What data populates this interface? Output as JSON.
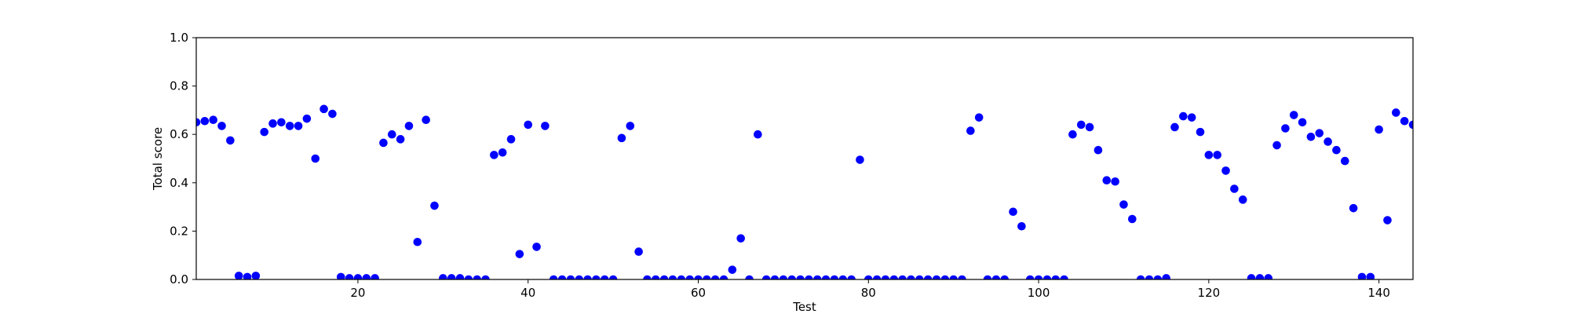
{
  "chart_data": {
    "type": "scatter",
    "title": "",
    "xlabel": "Test",
    "ylabel": "Total score",
    "xlim": [
      1,
      144
    ],
    "ylim": [
      0.0,
      1.0
    ],
    "grid": false,
    "legend": "none",
    "marker_color": "#0000ff",
    "xticks": [
      20,
      40,
      60,
      80,
      100,
      120,
      140
    ],
    "xtick_labels": [
      "20",
      "40",
      "60",
      "80",
      "100",
      "120",
      "140"
    ],
    "yticks": [
      0.0,
      0.2,
      0.4,
      0.6,
      0.8,
      1.0
    ],
    "ytick_labels": [
      "0.0",
      "0.2",
      "0.4",
      "0.6",
      "0.8",
      "1.0"
    ],
    "series": [
      {
        "points": [
          [
            1,
            0.65
          ],
          [
            2,
            0.655
          ],
          [
            3,
            0.66
          ],
          [
            4,
            0.635
          ],
          [
            5,
            0.575
          ],
          [
            6,
            0.015
          ],
          [
            7,
            0.01
          ],
          [
            8,
            0.015
          ],
          [
            9,
            0.61
          ],
          [
            10,
            0.645
          ],
          [
            11,
            0.65
          ],
          [
            12,
            0.635
          ],
          [
            13,
            0.635
          ],
          [
            14,
            0.665
          ],
          [
            15,
            0.5
          ],
          [
            16,
            0.705
          ],
          [
            17,
            0.685
          ],
          [
            18,
            0.01
          ],
          [
            19,
            0.005
          ],
          [
            20,
            0.005
          ],
          [
            21,
            0.005
          ],
          [
            22,
            0.005
          ],
          [
            23,
            0.565
          ],
          [
            24,
            0.6
          ],
          [
            25,
            0.58
          ],
          [
            26,
            0.635
          ],
          [
            27,
            0.155
          ],
          [
            28,
            0.66
          ],
          [
            29,
            0.305
          ],
          [
            30,
            0.005
          ],
          [
            31,
            0.005
          ],
          [
            32,
            0.005
          ],
          [
            33,
            0.0
          ],
          [
            34,
            0.0
          ],
          [
            35,
            0.0
          ],
          [
            36,
            0.515
          ],
          [
            37,
            0.525
          ],
          [
            38,
            0.58
          ],
          [
            39,
            0.105
          ],
          [
            40,
            0.64
          ],
          [
            41,
            0.135
          ],
          [
            42,
            0.635
          ],
          [
            43,
            0.0
          ],
          [
            44,
            0.0
          ],
          [
            45,
            0.0
          ],
          [
            46,
            0.0
          ],
          [
            47,
            0.0
          ],
          [
            48,
            0.0
          ],
          [
            49,
            0.0
          ],
          [
            50,
            0.0
          ],
          [
            51,
            0.585
          ],
          [
            52,
            0.635
          ],
          [
            53,
            0.115
          ],
          [
            54,
            0.0
          ],
          [
            55,
            0.0
          ],
          [
            56,
            0.0
          ],
          [
            57,
            0.0
          ],
          [
            58,
            0.0
          ],
          [
            59,
            0.0
          ],
          [
            60,
            0.0
          ],
          [
            61,
            0.0
          ],
          [
            62,
            0.0
          ],
          [
            63,
            0.0
          ],
          [
            64,
            0.04
          ],
          [
            65,
            0.17
          ],
          [
            66,
            0.0
          ],
          [
            67,
            0.6
          ],
          [
            68,
            0.0
          ],
          [
            69,
            0.0
          ],
          [
            70,
            0.0
          ],
          [
            71,
            0.0
          ],
          [
            72,
            0.0
          ],
          [
            73,
            0.0
          ],
          [
            74,
            0.0
          ],
          [
            75,
            0.0
          ],
          [
            76,
            0.0
          ],
          [
            77,
            0.0
          ],
          [
            78,
            0.0
          ],
          [
            79,
            0.495
          ],
          [
            80,
            0.0
          ],
          [
            81,
            0.0
          ],
          [
            82,
            0.0
          ],
          [
            83,
            0.0
          ],
          [
            84,
            0.0
          ],
          [
            85,
            0.0
          ],
          [
            86,
            0.0
          ],
          [
            87,
            0.0
          ],
          [
            88,
            0.0
          ],
          [
            89,
            0.0
          ],
          [
            90,
            0.0
          ],
          [
            91,
            0.0
          ],
          [
            92,
            0.615
          ],
          [
            93,
            0.67
          ],
          [
            94,
            0.0
          ],
          [
            95,
            0.0
          ],
          [
            96,
            0.0
          ],
          [
            97,
            0.28
          ],
          [
            98,
            0.22
          ],
          [
            99,
            0.0
          ],
          [
            100,
            0.0
          ],
          [
            101,
            0.0
          ],
          [
            102,
            0.0
          ],
          [
            103,
            0.0
          ],
          [
            104,
            0.6
          ],
          [
            105,
            0.64
          ],
          [
            106,
            0.63
          ],
          [
            107,
            0.535
          ],
          [
            108,
            0.41
          ],
          [
            109,
            0.405
          ],
          [
            110,
            0.31
          ],
          [
            111,
            0.25
          ],
          [
            112,
            0.0
          ],
          [
            113,
            0.0
          ],
          [
            114,
            0.0
          ],
          [
            115,
            0.005
          ],
          [
            116,
            0.63
          ],
          [
            117,
            0.675
          ],
          [
            118,
            0.67
          ],
          [
            119,
            0.61
          ],
          [
            120,
            0.515
          ],
          [
            121,
            0.515
          ],
          [
            122,
            0.45
          ],
          [
            123,
            0.375
          ],
          [
            124,
            0.33
          ],
          [
            125,
            0.005
          ],
          [
            126,
            0.005
          ],
          [
            127,
            0.005
          ],
          [
            128,
            0.555
          ],
          [
            129,
            0.625
          ],
          [
            130,
            0.68
          ],
          [
            131,
            0.65
          ],
          [
            132,
            0.59
          ],
          [
            133,
            0.605
          ],
          [
            134,
            0.57
          ],
          [
            135,
            0.535
          ],
          [
            136,
            0.49
          ],
          [
            137,
            0.295
          ],
          [
            138,
            0.01
          ],
          [
            139,
            0.01
          ],
          [
            140,
            0.62
          ],
          [
            141,
            0.245
          ],
          [
            142,
            0.69
          ],
          [
            143,
            0.655
          ],
          [
            144,
            0.64
          ]
        ]
      }
    ]
  }
}
